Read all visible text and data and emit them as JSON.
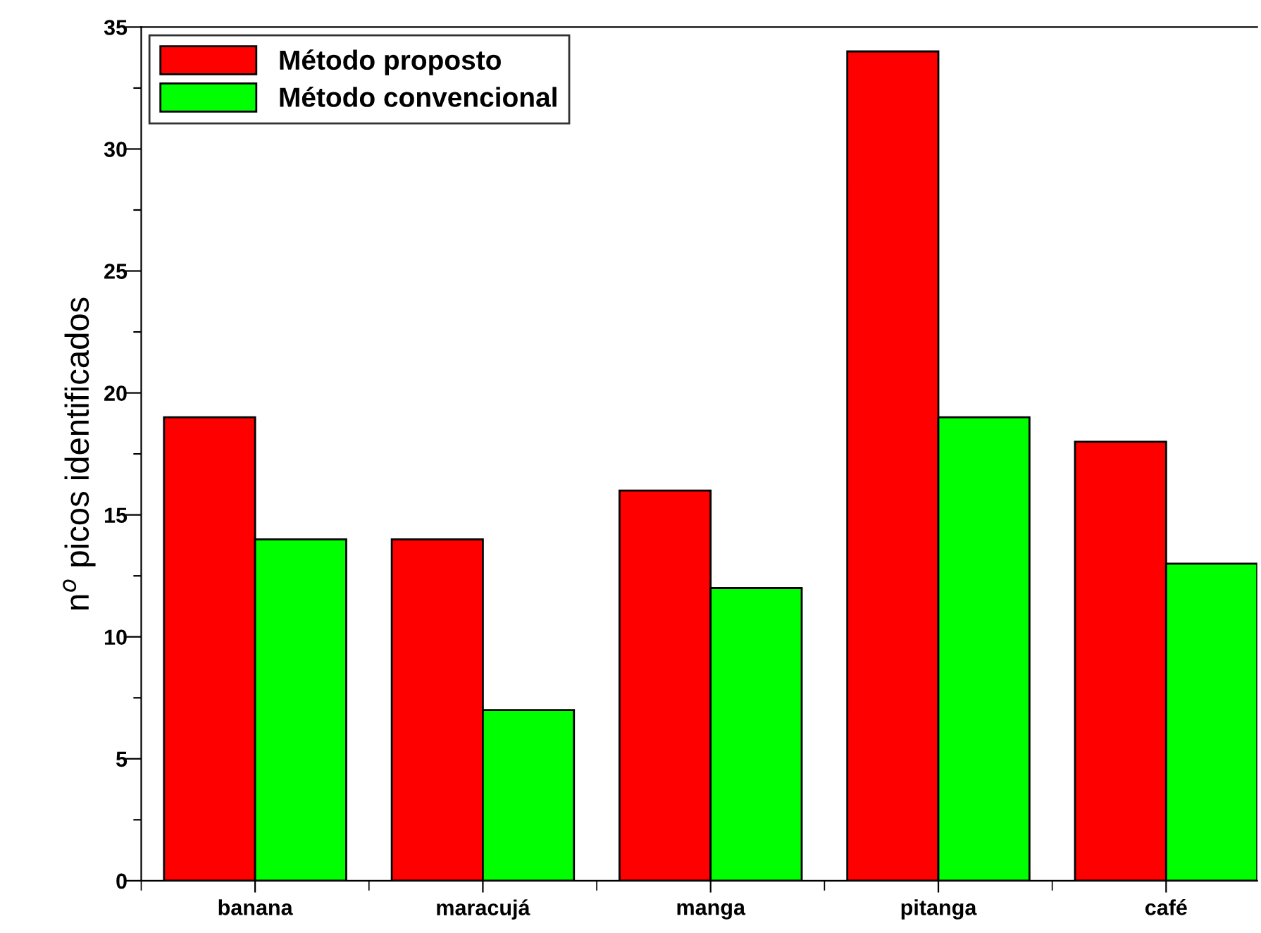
{
  "chart_data": {
    "type": "bar",
    "ylabel": "n$^{o}$ picos identificados",
    "categories": [
      "banana",
      "maracujá",
      "manga",
      "pitanga",
      "café"
    ],
    "series": [
      {
        "name": "Método proposto",
        "color": "#ff0000",
        "values": [
          19,
          14,
          16,
          34,
          18
        ]
      },
      {
        "name": "Método convencional",
        "color": "#00ff00",
        "values": [
          14,
          7,
          12,
          19,
          13
        ]
      }
    ],
    "ylim": [
      0,
      35
    ],
    "yticks": [
      0,
      {
        "value": 2.5,
        "label": null
      },
      5,
      {
        "value": 7.5,
        "label": null
      },
      10,
      {
        "value": 12.5,
        "label": null
      },
      15,
      {
        "value": 17.5,
        "label": null
      },
      20,
      {
        "value": 22.5,
        "label": null
      },
      25,
      {
        "value": 27.5,
        "label": null
      },
      30,
      {
        "value": 32.5,
        "label": null
      },
      35
    ],
    "grid": false,
    "legend": "top left"
  }
}
